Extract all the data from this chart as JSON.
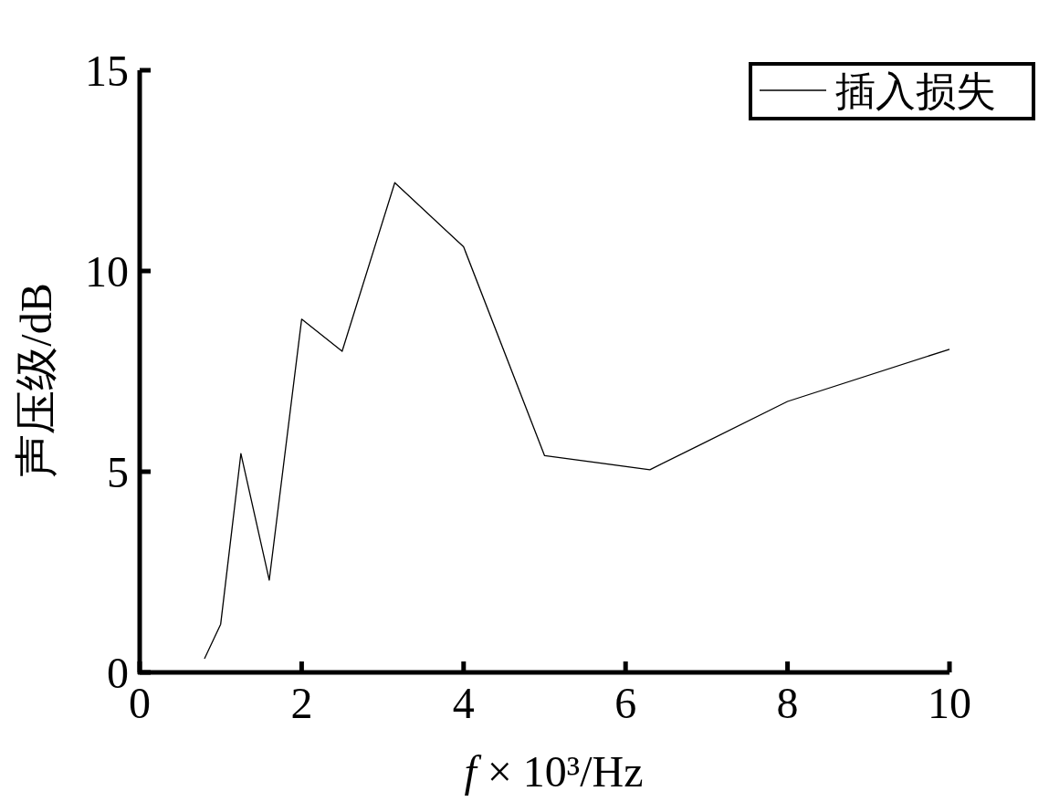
{
  "chart_data": {
    "type": "line",
    "xlabel": "f × 10³/Hz",
    "ylabel": "声压级/dB",
    "xlim": [
      0,
      10
    ],
    "ylim": [
      0,
      15
    ],
    "xticks": [
      0,
      2,
      4,
      6,
      8,
      10
    ],
    "yticks": [
      0,
      5,
      10,
      15
    ],
    "x": [
      0.8,
      1,
      1.25,
      1.6,
      2,
      2.5,
      3.15,
      4,
      5,
      6.3,
      8,
      10
    ],
    "series": [
      {
        "name": "插入损失",
        "color": "#000000",
        "values": [
          0.34,
          1.2,
          5.45,
          2.3,
          8.8,
          8.0,
          12.2,
          10.6,
          5.4,
          5.05,
          6.75,
          8.05
        ]
      }
    ],
    "legend": "top right",
    "grid": false,
    "marker": "none",
    "line_style": "solid"
  }
}
